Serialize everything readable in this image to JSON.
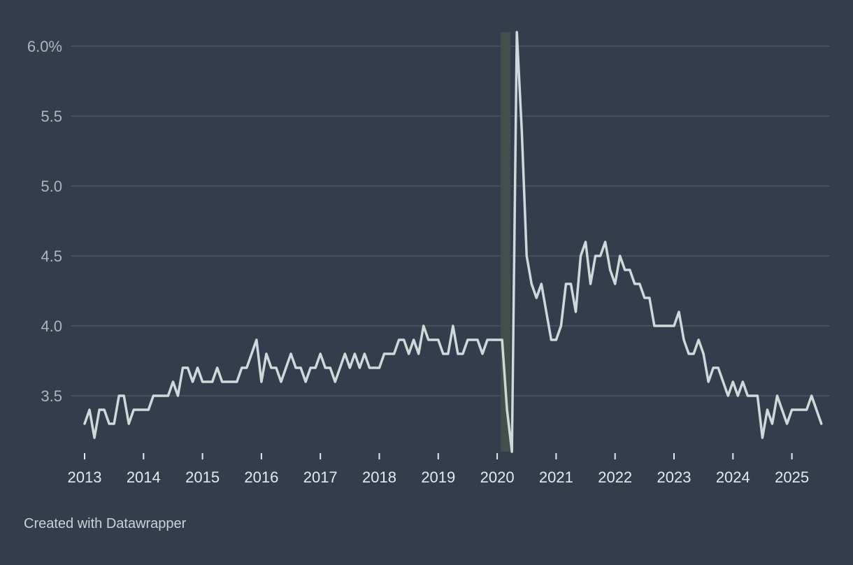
{
  "footer": {
    "credit": "Created with Datawrapper"
  },
  "colors": {
    "background": "#333d4c",
    "line": "#cfd9da",
    "grid": "#4a5463",
    "recession": "#444e4c"
  },
  "chart_data": {
    "type": "line",
    "title": "",
    "xlabel": "",
    "ylabel": "",
    "ylim": [
      3.1,
      6.1
    ],
    "x_start": "2013-01",
    "x_frequency": "monthly",
    "y_ticks": [
      3.5,
      4.0,
      4.5,
      5.0,
      5.5,
      6.0
    ],
    "y_tick_labels": [
      "3.5",
      "4.0",
      "4.5",
      "5.0",
      "5.5",
      "6.0%"
    ],
    "x_ticks": [
      "2013",
      "2014",
      "2015",
      "2016",
      "2017",
      "2018",
      "2019",
      "2020",
      "2021",
      "2022",
      "2023",
      "2024",
      "2025"
    ],
    "grid": true,
    "legend": "none",
    "shaded_periods": [
      {
        "start": "2020-02",
        "end": "2020-04"
      }
    ],
    "series": [
      {
        "values": [
          3.3,
          3.4,
          3.2,
          3.4,
          3.4,
          3.3,
          3.3,
          3.5,
          3.5,
          3.3,
          3.4,
          3.4,
          3.4,
          3.4,
          3.5,
          3.5,
          3.5,
          3.5,
          3.6,
          3.5,
          3.7,
          3.7,
          3.6,
          3.7,
          3.6,
          3.6,
          3.6,
          3.7,
          3.6,
          3.6,
          3.6,
          3.6,
          3.7,
          3.7,
          3.8,
          3.9,
          3.6,
          3.8,
          3.7,
          3.7,
          3.6,
          3.7,
          3.8,
          3.7,
          3.7,
          3.6,
          3.7,
          3.7,
          3.8,
          3.7,
          3.7,
          3.6,
          3.7,
          3.8,
          3.7,
          3.8,
          3.7,
          3.8,
          3.7,
          3.7,
          3.7,
          3.8,
          3.8,
          3.8,
          3.9,
          3.9,
          3.8,
          3.9,
          3.8,
          4.0,
          3.9,
          3.9,
          3.9,
          3.8,
          3.8,
          4.0,
          3.8,
          3.8,
          3.9,
          3.9,
          3.9,
          3.8,
          3.9,
          3.9,
          3.9,
          3.9,
          3.4,
          3.1,
          6.1,
          5.4,
          4.5,
          4.3,
          4.2,
          4.3,
          4.1,
          3.9,
          3.9,
          4.0,
          4.3,
          4.3,
          4.1,
          4.5,
          4.6,
          4.3,
          4.5,
          4.5,
          4.6,
          4.4,
          4.3,
          4.5,
          4.4,
          4.4,
          4.3,
          4.3,
          4.2,
          4.2,
          4.0,
          4.0,
          4.0,
          4.0,
          4.0,
          4.1,
          3.9,
          3.8,
          3.8,
          3.9,
          3.8,
          3.6,
          3.7,
          3.7,
          3.6,
          3.5,
          3.6,
          3.5,
          3.6,
          3.5,
          3.5,
          3.5,
          3.2,
          3.4,
          3.3,
          3.5,
          3.4,
          3.3,
          3.4,
          3.4,
          3.4,
          3.4,
          3.5,
          3.4,
          3.3
        ]
      }
    ]
  }
}
